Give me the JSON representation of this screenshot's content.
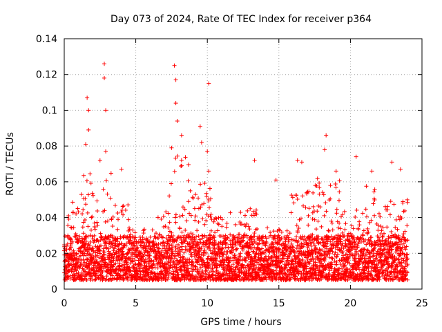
{
  "chart_data": {
    "type": "scatter",
    "title": "Day 073 of 2024, Rate Of TEC Index for receiver p364",
    "xlabel": "GPS time / hours",
    "ylabel": "ROTI / TECUs",
    "xlim": [
      0,
      25
    ],
    "ylim": [
      0,
      0.14
    ],
    "x_ticks": [
      0,
      5,
      10,
      15,
      20,
      25
    ],
    "y_ticks": [
      0,
      0.02,
      0.04,
      0.06,
      0.08,
      0.1,
      0.12,
      0.14
    ],
    "x_tick_labels": [
      "0",
      "5",
      "10",
      "15",
      "20",
      "25"
    ],
    "y_tick_labels": [
      "0",
      "0.02",
      "0.04",
      "0.06",
      "0.08",
      "0.1",
      "0.12",
      "0.14"
    ],
    "grid": true,
    "marker": "+",
    "color": "#ff0000",
    "data_range_x": [
      0,
      24
    ],
    "baseline_band": [
      0.005,
      0.03
    ],
    "series": [
      {
        "name": "ROTI",
        "notable_points": [
          {
            "x": 0.3,
            "y": 0.041
          },
          {
            "x": 1.5,
            "y": 0.081
          },
          {
            "x": 1.6,
            "y": 0.107
          },
          {
            "x": 1.7,
            "y": 0.1
          },
          {
            "x": 1.7,
            "y": 0.089
          },
          {
            "x": 2.5,
            "y": 0.072
          },
          {
            "x": 2.8,
            "y": 0.126
          },
          {
            "x": 2.8,
            "y": 0.118
          },
          {
            "x": 2.9,
            "y": 0.1
          },
          {
            "x": 2.9,
            "y": 0.077
          },
          {
            "x": 4.0,
            "y": 0.067
          },
          {
            "x": 7.7,
            "y": 0.125
          },
          {
            "x": 7.8,
            "y": 0.117
          },
          {
            "x": 7.8,
            "y": 0.104
          },
          {
            "x": 7.9,
            "y": 0.094
          },
          {
            "x": 7.5,
            "y": 0.079
          },
          {
            "x": 8.2,
            "y": 0.086
          },
          {
            "x": 9.5,
            "y": 0.091
          },
          {
            "x": 9.6,
            "y": 0.082
          },
          {
            "x": 10.1,
            "y": 0.115
          },
          {
            "x": 10.0,
            "y": 0.077
          },
          {
            "x": 10.1,
            "y": 0.066
          },
          {
            "x": 13.3,
            "y": 0.072
          },
          {
            "x": 14.8,
            "y": 0.061
          },
          {
            "x": 16.3,
            "y": 0.072
          },
          {
            "x": 16.6,
            "y": 0.071
          },
          {
            "x": 18.3,
            "y": 0.086
          },
          {
            "x": 18.2,
            "y": 0.078
          },
          {
            "x": 19.0,
            "y": 0.066
          },
          {
            "x": 20.4,
            "y": 0.074
          },
          {
            "x": 21.5,
            "y": 0.066
          },
          {
            "x": 22.9,
            "y": 0.071
          },
          {
            "x": 23.5,
            "y": 0.067
          }
        ],
        "activity_profile": [
          {
            "start": 0.0,
            "end": 0.5,
            "peak": 0.04
          },
          {
            "start": 0.5,
            "end": 1.2,
            "peak": 0.05
          },
          {
            "start": 1.2,
            "end": 2.2,
            "peak": 0.07
          },
          {
            "start": 2.2,
            "end": 3.3,
            "peak": 0.065
          },
          {
            "start": 3.3,
            "end": 4.5,
            "peak": 0.05
          },
          {
            "start": 4.5,
            "end": 6.5,
            "peak": 0.035
          },
          {
            "start": 6.5,
            "end": 7.3,
            "peak": 0.045
          },
          {
            "start": 7.3,
            "end": 8.8,
            "peak": 0.075
          },
          {
            "start": 8.8,
            "end": 10.3,
            "peak": 0.06
          },
          {
            "start": 10.3,
            "end": 13.5,
            "peak": 0.045
          },
          {
            "start": 13.5,
            "end": 15.8,
            "peak": 0.035
          },
          {
            "start": 15.8,
            "end": 17.5,
            "peak": 0.055
          },
          {
            "start": 17.5,
            "end": 19.3,
            "peak": 0.062
          },
          {
            "start": 19.3,
            "end": 20.8,
            "peak": 0.045
          },
          {
            "start": 20.8,
            "end": 22.0,
            "peak": 0.058
          },
          {
            "start": 22.0,
            "end": 24.0,
            "peak": 0.05
          }
        ]
      }
    ]
  }
}
